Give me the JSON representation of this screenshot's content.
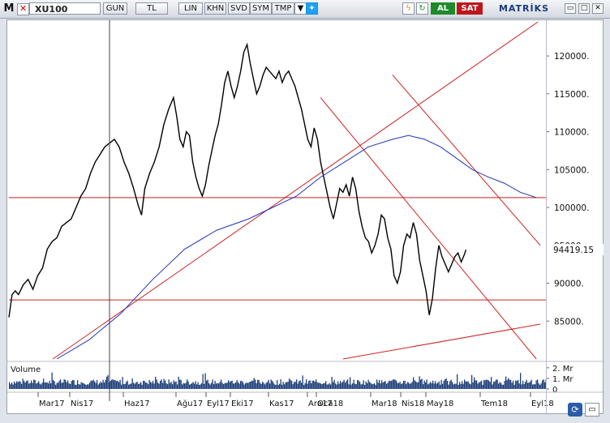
{
  "toolbar": {
    "m_label": "M",
    "close_label": "✕",
    "symbol": "XU100",
    "buttons": [
      "GUN",
      "TL",
      "LIN",
      "KHN",
      "SVD",
      "SYM",
      "TMP"
    ],
    "dropdown_icon": "chevron-down-icon",
    "twitter_icon": "twitter-bird-icon",
    "lightning_icon": "lightning-icon",
    "refresh_icon": "refresh-icon",
    "buy_label": "AL",
    "sell_label": "SAT",
    "brand": "MATRİKS",
    "window_buttons": [
      "▭",
      "□",
      "✕"
    ]
  },
  "chart_data": {
    "type": "line",
    "symbol": "XU100",
    "price_axis": {
      "ticks": [
        "120000.",
        "115000.",
        "110000.",
        "105000.",
        "100000.",
        "95000.",
        "90000.",
        "85000."
      ],
      "tick_values": [
        120000,
        115000,
        110000,
        105000,
        100000,
        95000,
        90000,
        85000
      ],
      "range": [
        80000,
        124500
      ]
    },
    "last_price_label": "94419.15",
    "last_price": 94419.15,
    "x_labels": [
      "Mar17",
      "Nis17",
      "Haz17",
      "Ağu17",
      "Eyl17",
      "Eki17",
      "Kas17",
      "Ara17",
      "Oca18",
      "Mar18",
      "Nis18",
      "May18",
      "Tem18",
      "Eyl18"
    ],
    "series": [
      {
        "points": [
          [
            0,
            85500
          ],
          [
            4,
            88500
          ],
          [
            8,
            89000
          ],
          [
            12,
            88500
          ],
          [
            18,
            89800
          ],
          [
            24,
            90500
          ],
          [
            30,
            89200
          ],
          [
            36,
            91000
          ],
          [
            42,
            92000
          ],
          [
            48,
            94500
          ],
          [
            54,
            95500
          ],
          [
            60,
            96000
          ],
          [
            66,
            97500
          ],
          [
            72,
            98000
          ],
          [
            78,
            98500
          ],
          [
            84,
            100000
          ],
          [
            90,
            101500
          ],
          [
            96,
            102500
          ],
          [
            102,
            104500
          ],
          [
            108,
            106000
          ],
          [
            114,
            107000
          ],
          [
            120,
            108000
          ],
          [
            126,
            108500
          ],
          [
            132,
            109000
          ],
          [
            138,
            108000
          ],
          [
            144,
            106000
          ],
          [
            150,
            104500
          ],
          [
            156,
            102500
          ],
          [
            162,
            100200
          ],
          [
            166,
            99000
          ],
          [
            170,
            102500
          ],
          [
            176,
            104500
          ],
          [
            182,
            106000
          ],
          [
            188,
            108000
          ],
          [
            194,
            111000
          ],
          [
            200,
            113000
          ],
          [
            206,
            114500
          ],
          [
            210,
            112000
          ],
          [
            214,
            109000
          ],
          [
            218,
            108000
          ],
          [
            222,
            110000
          ],
          [
            226,
            109500
          ],
          [
            230,
            106000
          ],
          [
            234,
            104000
          ],
          [
            238,
            102500
          ],
          [
            242,
            101500
          ],
          [
            246,
            103000
          ],
          [
            250,
            105500
          ],
          [
            254,
            107500
          ],
          [
            258,
            109500
          ],
          [
            262,
            111000
          ],
          [
            266,
            113500
          ],
          [
            270,
            116500
          ],
          [
            274,
            118000
          ],
          [
            278,
            116000
          ],
          [
            282,
            114500
          ],
          [
            286,
            116000
          ],
          [
            290,
            118000
          ],
          [
            294,
            120500
          ],
          [
            298,
            121500
          ],
          [
            302,
            119000
          ],
          [
            306,
            117000
          ],
          [
            310,
            115000
          ],
          [
            314,
            116000
          ],
          [
            318,
            117500
          ],
          [
            322,
            118500
          ],
          [
            326,
            118000
          ],
          [
            330,
            117500
          ],
          [
            334,
            117000
          ],
          [
            338,
            118000
          ],
          [
            342,
            116500
          ],
          [
            346,
            117500
          ],
          [
            350,
            118000
          ],
          [
            354,
            117000
          ],
          [
            358,
            116000
          ],
          [
            362,
            114500
          ],
          [
            366,
            113000
          ],
          [
            370,
            111000
          ],
          [
            374,
            109000
          ],
          [
            378,
            108000
          ],
          [
            382,
            110500
          ],
          [
            386,
            109000
          ],
          [
            390,
            106000
          ],
          [
            394,
            104000
          ],
          [
            398,
            102000
          ],
          [
            402,
            100000
          ],
          [
            406,
            98500
          ],
          [
            410,
            100500
          ],
          [
            414,
            102500
          ],
          [
            418,
            102000
          ],
          [
            422,
            103000
          ],
          [
            426,
            101500
          ],
          [
            430,
            104000
          ],
          [
            434,
            102500
          ],
          [
            438,
            99500
          ],
          [
            442,
            97500
          ],
          [
            446,
            96000
          ],
          [
            450,
            95500
          ],
          [
            454,
            94000
          ],
          [
            458,
            95000
          ],
          [
            462,
            96500
          ],
          [
            466,
            99000
          ],
          [
            470,
            98500
          ],
          [
            474,
            96000
          ],
          [
            478,
            94500
          ],
          [
            482,
            91000
          ],
          [
            486,
            90000
          ],
          [
            490,
            91500
          ],
          [
            494,
            95000
          ],
          [
            498,
            96500
          ],
          [
            502,
            96000
          ],
          [
            506,
            98000
          ],
          [
            510,
            96500
          ],
          [
            514,
            93000
          ],
          [
            518,
            91000
          ],
          [
            522,
            89000
          ],
          [
            526,
            85800
          ],
          [
            530,
            88000
          ],
          [
            534,
            92000
          ],
          [
            538,
            95000
          ],
          [
            542,
            93500
          ],
          [
            546,
            92500
          ],
          [
            550,
            91500
          ],
          [
            554,
            92500
          ],
          [
            558,
            93500
          ],
          [
            562,
            94000
          ],
          [
            566,
            92800
          ],
          [
            570,
            93800
          ],
          [
            572,
            94419
          ]
        ],
        "color": "#000000"
      },
      {
        "points": [
          [
            60,
            80000
          ],
          [
            100,
            82500
          ],
          [
            140,
            86000
          ],
          [
            180,
            90500
          ],
          [
            220,
            94500
          ],
          [
            260,
            97000
          ],
          [
            300,
            98500
          ],
          [
            330,
            100000
          ],
          [
            360,
            101500
          ],
          [
            390,
            104000
          ],
          [
            420,
            106000
          ],
          [
            450,
            108000
          ],
          [
            480,
            109000
          ],
          [
            500,
            109500
          ],
          [
            520,
            109000
          ],
          [
            540,
            108000
          ],
          [
            560,
            106500
          ],
          [
            580,
            105000
          ],
          [
            600,
            104000
          ],
          [
            620,
            103200
          ],
          [
            640,
            102000
          ],
          [
            660,
            101300
          ]
        ],
        "color": "#2233bb"
      }
    ],
    "reference_lines": [
      {
        "type": "horizontal",
        "y": 101300,
        "color": "#cc2222"
      },
      {
        "type": "horizontal",
        "y": 87800,
        "color": "#cc2222"
      },
      {
        "type": "trend",
        "points": [
          [
            55,
            80000
          ],
          [
            662,
            124500
          ]
        ],
        "color": "#cc2222"
      },
      {
        "type": "trend",
        "points": [
          [
            390,
            114500
          ],
          [
            660,
            80000
          ]
        ],
        "color": "#cc2222"
      },
      {
        "type": "trend",
        "points": [
          [
            480,
            117500
          ],
          [
            665,
            95000
          ]
        ],
        "color": "#cc2222"
      },
      {
        "type": "trend",
        "points": [
          [
            418,
            80000
          ],
          [
            665,
            84600
          ]
        ],
        "color": "#cc2222"
      }
    ],
    "volume_panel": {
      "label": "Volume",
      "ticks": [
        "2. Mr",
        "1. Mr",
        "0"
      ],
      "tick_values": [
        2,
        1,
        0
      ],
      "unit": "Mr"
    },
    "grid": false
  }
}
